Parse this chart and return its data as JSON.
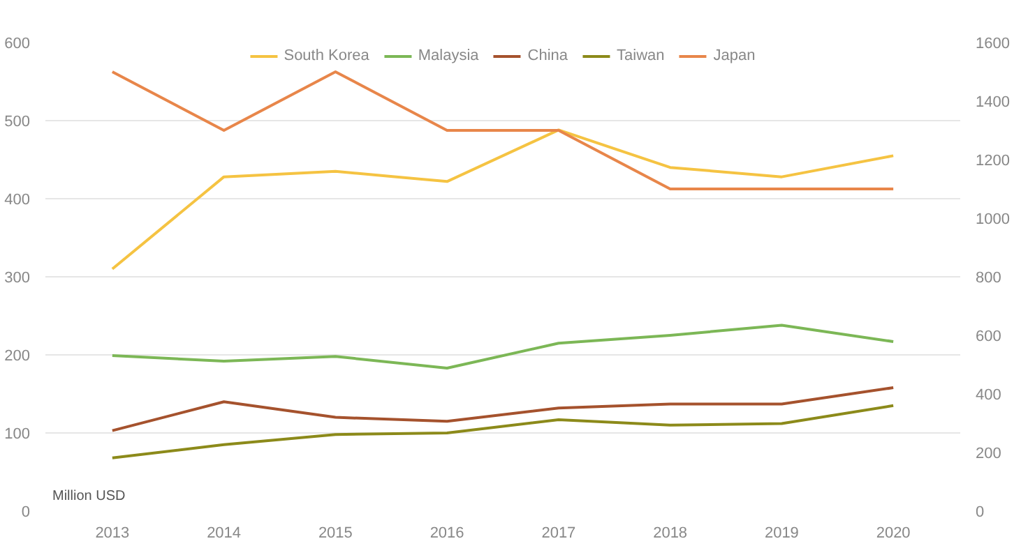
{
  "chart_data": {
    "type": "line",
    "ylabel": "Million USD",
    "categories": [
      "2013",
      "2014",
      "2015",
      "2016",
      "2017",
      "2018",
      "2019",
      "2020"
    ],
    "series": [
      {
        "name": "South Korea",
        "color": "#f5c342",
        "values": [
          310,
          428,
          435,
          422,
          488,
          440,
          428,
          455
        ]
      },
      {
        "name": "Malaysia",
        "color": "#7cb756",
        "values": [
          199,
          192,
          198,
          183,
          215,
          225,
          238,
          217
        ]
      },
      {
        "name": "China",
        "color": "#a5522d",
        "values": [
          103,
          140,
          120,
          115,
          132,
          137,
          137,
          158
        ]
      },
      {
        "name": "Taiwan",
        "color": "#8c8a1a",
        "values": [
          68,
          85,
          98,
          100,
          117,
          110,
          112,
          135
        ]
      },
      {
        "name": "Japan",
        "color": "#e8864a",
        "axis": "y2",
        "values": [
          1500,
          1300,
          1500,
          1300,
          1300,
          1100,
          1100,
          1100
        ]
      }
    ],
    "ylim": [
      0,
      600
    ],
    "yticks": [
      0,
      100,
      200,
      300,
      400,
      500,
      600
    ],
    "y2lim": [
      0,
      1600
    ],
    "y2ticks": [
      0,
      200,
      400,
      600,
      800,
      1000,
      1200,
      1400,
      1600
    ],
    "grid": "y",
    "legend": "top"
  }
}
